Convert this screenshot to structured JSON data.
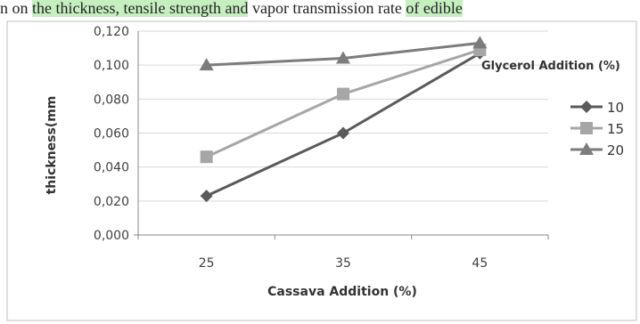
{
  "caption_fragments": [
    {
      "text": "n on ",
      "highlight": false
    },
    {
      "text": "the thickness, tensile strength and",
      "highlight": true
    },
    {
      "text": " vapor transmission rate ",
      "highlight": false
    },
    {
      "text": "of edible",
      "highlight": true
    }
  ],
  "colors": {
    "highlight": "#c6efc0",
    "series_10": "#5a5a5a",
    "series_15": "#a6a6a6",
    "series_20": "#7c7c7c"
  },
  "chart_data": {
    "type": "line",
    "title": "",
    "xlabel": "Cassava Addition (%)",
    "ylabel": "thickness(mm",
    "categories": [
      "25",
      "35",
      "45"
    ],
    "y_ticks": [
      "0,000",
      "0,020",
      "0,040",
      "0,060",
      "0,080",
      "0,100",
      "0,120"
    ],
    "ylim": [
      0,
      0.12
    ],
    "grid": "horizontal",
    "legend_title": "Glycerol Addition (%)",
    "legend_position": "right",
    "series": [
      {
        "name": "10",
        "marker": "diamond",
        "values": [
          0.023,
          0.06,
          0.107
        ]
      },
      {
        "name": "15",
        "marker": "square",
        "values": [
          0.046,
          0.083,
          0.109
        ]
      },
      {
        "name": "20",
        "marker": "triangle",
        "values": [
          0.1,
          0.104,
          0.113
        ]
      }
    ]
  }
}
